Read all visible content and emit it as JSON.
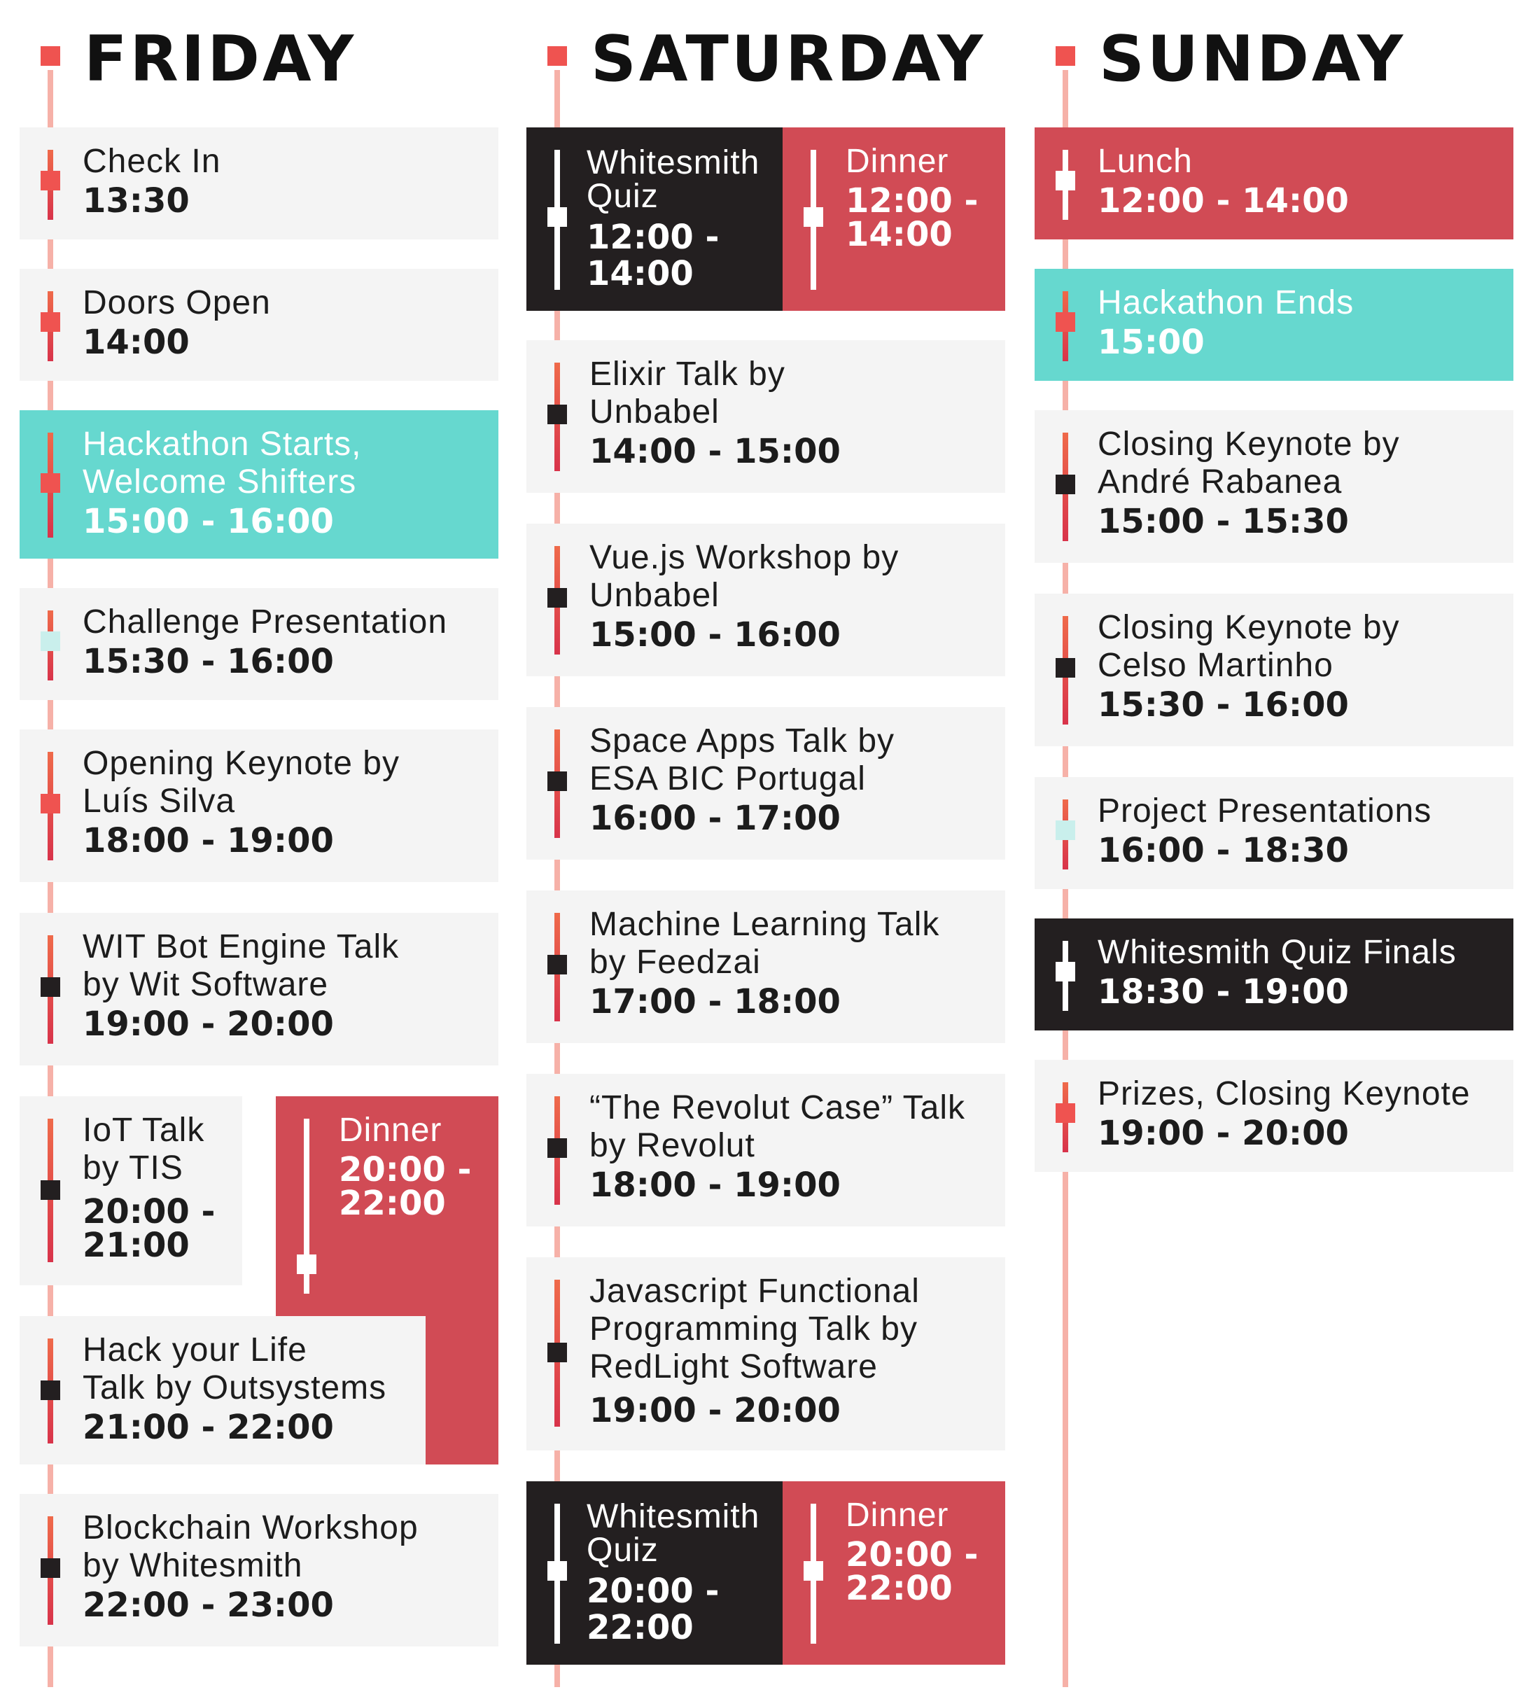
{
  "days": {
    "friday": {
      "title": "Friday",
      "events": [
        {
          "title_lines": [
            "Check In"
          ],
          "time_lines": [
            "13:30"
          ]
        },
        {
          "title_lines": [
            "Doors Open"
          ],
          "time_lines": [
            "14:00"
          ]
        },
        {
          "title_lines": [
            "Hackathon Starts,",
            "Welcome Shifters"
          ],
          "time_lines": [
            "15:00 - 16:00"
          ]
        },
        {
          "title_lines": [
            "Challenge Presentation"
          ],
          "time_lines": [
            "15:30 - 16:00"
          ]
        },
        {
          "title_lines": [
            "Opening Keynote by",
            "Luís Silva"
          ],
          "time_lines": [
            "18:00 - 19:00"
          ]
        },
        {
          "title_lines": [
            "WIT Bot Engine Talk",
            "by Wit Software"
          ],
          "time_lines": [
            "19:00 - 20:00"
          ]
        },
        {
          "title_lines": [
            "IoT Talk",
            "by TIS"
          ],
          "time_lines": [
            "20:00 -",
            "21:00"
          ]
        },
        {
          "title_lines": [
            "Dinner"
          ],
          "time_lines": [
            "20:00 -",
            "22:00"
          ]
        },
        {
          "title_lines": [
            "Hack your Life",
            "Talk by Outsystems"
          ],
          "time_lines": [
            "21:00 - 22:00"
          ]
        },
        {
          "title_lines": [
            "Blockchain Workshop",
            "by Whitesmith"
          ],
          "time_lines": [
            "22:00 - 23:00"
          ]
        }
      ]
    },
    "saturday": {
      "title": "Saturday",
      "events": [
        {
          "title_lines": [
            "Whitesmith",
            "Quiz"
          ],
          "time_lines": [
            "12:00 -",
            "14:00"
          ]
        },
        {
          "title_lines": [
            "Dinner"
          ],
          "time_lines": [
            "12:00 -",
            "14:00"
          ]
        },
        {
          "title_lines": [
            "Elixir Talk by",
            "Unbabel"
          ],
          "time_lines": [
            "14:00 - 15:00"
          ]
        },
        {
          "title_lines": [
            "Vue.js Workshop by",
            "Unbabel"
          ],
          "time_lines": [
            "15:00 - 16:00"
          ]
        },
        {
          "title_lines": [
            "Space Apps Talk by",
            "ESA BIC Portugal"
          ],
          "time_lines": [
            "16:00 - 17:00"
          ]
        },
        {
          "title_lines": [
            "Machine Learning Talk",
            "by Feedzai"
          ],
          "time_lines": [
            "17:00 - 18:00"
          ]
        },
        {
          "title_lines": [
            "“The Revolut Case” Talk",
            "by Revolut"
          ],
          "time_lines": [
            "18:00 - 19:00"
          ]
        },
        {
          "title_lines": [
            "Javascript Functional",
            "Programming Talk by",
            "RedLight Software"
          ],
          "time_lines": [
            "19:00 - 20:00"
          ]
        },
        {
          "title_lines": [
            "Whitesmith",
            "Quiz"
          ],
          "time_lines": [
            "20:00 -",
            "22:00"
          ]
        },
        {
          "title_lines": [
            "Dinner"
          ],
          "time_lines": [
            "20:00 -",
            "22:00"
          ]
        }
      ]
    },
    "sunday": {
      "title": "Sunday",
      "events": [
        {
          "title_lines": [
            "Lunch"
          ],
          "time_lines": [
            "12:00 - 14:00"
          ]
        },
        {
          "title_lines": [
            "Hackathon Ends"
          ],
          "time_lines": [
            "15:00"
          ]
        },
        {
          "title_lines": [
            "Closing Keynote by",
            "André Rabanea"
          ],
          "time_lines": [
            "15:00 - 15:30"
          ]
        },
        {
          "title_lines": [
            "Closing Keynote by",
            "Celso Martinho"
          ],
          "time_lines": [
            "15:30 - 16:00"
          ]
        },
        {
          "title_lines": [
            "Project Presentations"
          ],
          "time_lines": [
            "16:00 - 18:30"
          ]
        },
        {
          "title_lines": [
            "Whitesmith Quiz Finals"
          ],
          "time_lines": [
            "18:30 - 19:00"
          ]
        },
        {
          "title_lines": [
            "Prizes, Closing Keynote"
          ],
          "time_lines": [
            "19:00 - 20:00"
          ]
        }
      ]
    }
  },
  "colors": {
    "card": "#f4f4f4",
    "teal": "#66d8cf",
    "red": "#d14b55",
    "black": "#231f20",
    "accent": "#ef5350",
    "spine": "#f6b1a8"
  }
}
